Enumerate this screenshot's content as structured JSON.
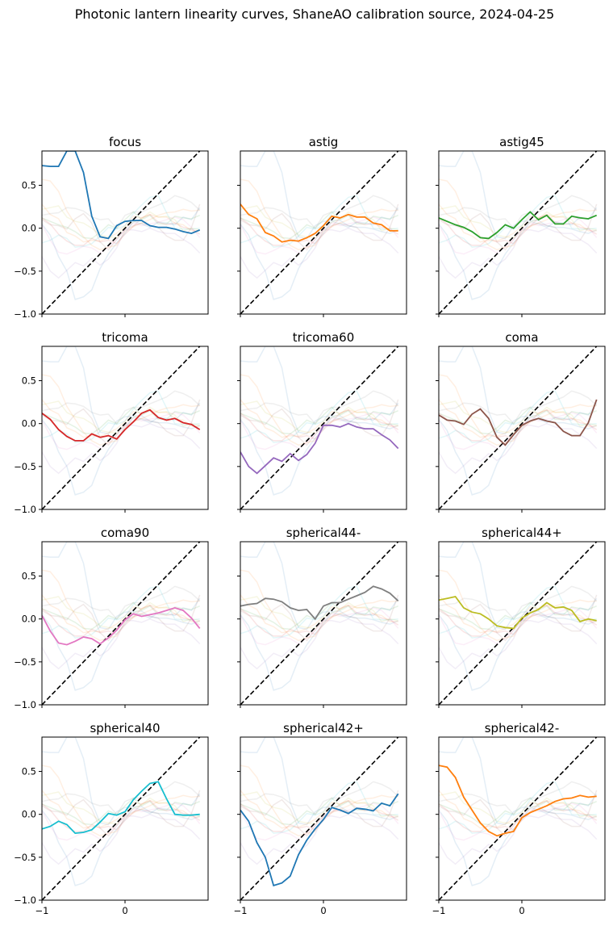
{
  "figure_title": "Photonic lantern linearity curves, ShaneAO calibration source, 2024-04-25",
  "chart_data": {
    "type": "line",
    "layout": "4x3 grid of subplots, shared x and y axes",
    "xlim": [
      -1,
      1
    ],
    "ylim": [
      -1,
      0.9
    ],
    "x_ticks": [
      -1,
      0
    ],
    "y_ticks": [
      -1.0,
      -0.5,
      0.0,
      0.5
    ],
    "x_tick_labels": [
      "−1",
      "0"
    ],
    "y_tick_labels": [
      "−1.0",
      "−0.5",
      "0.0",
      "0.5"
    ],
    "x": [
      -1.0,
      -0.9,
      -0.8,
      -0.7,
      -0.6,
      -0.5,
      -0.4,
      -0.3,
      -0.2,
      -0.1,
      0.0,
      0.1,
      0.2,
      0.3,
      0.4,
      0.5,
      0.6,
      0.7,
      0.8,
      0.9
    ],
    "reference_line": "y = x (black dashed)",
    "background_lines": "faint curves of the other modes' responses, alpha ~0.1",
    "panels": [
      {
        "title": "focus",
        "color": "#1f77b4",
        "values": [
          0.73,
          0.72,
          0.72,
          0.9,
          0.9,
          0.65,
          0.14,
          -0.1,
          -0.12,
          0.03,
          0.08,
          0.09,
          0.09,
          0.03,
          0.01,
          0.01,
          -0.01,
          -0.04,
          -0.06,
          -0.02
        ]
      },
      {
        "title": "astig",
        "color": "#ff7f0e",
        "values": [
          0.28,
          0.16,
          0.11,
          -0.05,
          -0.09,
          -0.16,
          -0.14,
          -0.15,
          -0.11,
          -0.06,
          0.03,
          0.14,
          0.12,
          0.16,
          0.13,
          0.13,
          0.06,
          0.04,
          -0.03,
          -0.03
        ]
      },
      {
        "title": "astig45",
        "color": "#2ca02c",
        "values": [
          0.12,
          0.08,
          0.04,
          0.01,
          -0.04,
          -0.11,
          -0.12,
          -0.05,
          0.04,
          0.0,
          0.1,
          0.19,
          0.1,
          0.15,
          0.05,
          0.05,
          0.14,
          0.12,
          0.11,
          0.15
        ]
      },
      {
        "title": "tricoma",
        "color": "#d62728",
        "values": [
          0.12,
          0.05,
          -0.07,
          -0.15,
          -0.2,
          -0.2,
          -0.12,
          -0.16,
          -0.14,
          -0.18,
          -0.07,
          0.02,
          0.12,
          0.16,
          0.07,
          0.04,
          0.06,
          0.01,
          -0.01,
          -0.07
        ]
      },
      {
        "title": "tricoma60",
        "color": "#9467bd",
        "values": [
          -0.33,
          -0.5,
          -0.58,
          -0.49,
          -0.4,
          -0.44,
          -0.35,
          -0.43,
          -0.36,
          -0.23,
          -0.02,
          -0.02,
          -0.04,
          0.0,
          -0.04,
          -0.06,
          -0.06,
          -0.13,
          -0.19,
          -0.29
        ]
      },
      {
        "title": "coma",
        "color": "#8c564b",
        "values": [
          0.1,
          0.04,
          0.03,
          -0.01,
          0.11,
          0.17,
          0.06,
          -0.16,
          -0.25,
          -0.13,
          -0.02,
          0.03,
          0.06,
          0.03,
          0.01,
          -0.09,
          -0.14,
          -0.14,
          0.01,
          0.28
        ]
      },
      {
        "title": "coma90",
        "color": "#e377c2",
        "values": [
          0.04,
          -0.14,
          -0.28,
          -0.3,
          -0.26,
          -0.21,
          -0.23,
          -0.29,
          -0.22,
          -0.13,
          -0.01,
          0.06,
          0.03,
          0.05,
          0.07,
          0.1,
          0.13,
          0.1,
          0.01,
          -0.11
        ]
      },
      {
        "title": "spherical44-",
        "color": "#7f7f7f",
        "values": [
          0.15,
          0.17,
          0.18,
          0.24,
          0.23,
          0.2,
          0.13,
          0.1,
          0.11,
          0.0,
          0.15,
          0.19,
          0.19,
          0.23,
          0.27,
          0.31,
          0.38,
          0.35,
          0.3,
          0.21
        ]
      },
      {
        "title": "spherical44+",
        "color": "#bcbd22",
        "values": [
          0.22,
          0.24,
          0.26,
          0.13,
          0.08,
          0.06,
          0.0,
          -0.08,
          -0.1,
          -0.11,
          0.01,
          0.07,
          0.11,
          0.19,
          0.13,
          0.14,
          0.1,
          -0.03,
          0.0,
          -0.02
        ]
      },
      {
        "title": "spherical40",
        "color": "#17becf",
        "values": [
          -0.17,
          -0.14,
          -0.08,
          -0.12,
          -0.22,
          -0.21,
          -0.18,
          -0.09,
          0.01,
          -0.01,
          0.03,
          0.17,
          0.27,
          0.36,
          0.38,
          0.18,
          0.0,
          -0.01,
          -0.01,
          0.0
        ]
      },
      {
        "title": "spherical42+",
        "color": "#1f77b4",
        "values": [
          0.05,
          -0.08,
          -0.33,
          -0.5,
          -0.83,
          -0.8,
          -0.72,
          -0.47,
          -0.3,
          -0.17,
          -0.06,
          0.08,
          0.05,
          0.01,
          0.07,
          0.06,
          0.04,
          0.13,
          0.1,
          0.24
        ]
      },
      {
        "title": "spherical42-",
        "color": "#ff7f0e",
        "values": [
          0.57,
          0.55,
          0.43,
          0.2,
          0.05,
          -0.1,
          -0.2,
          -0.25,
          -0.22,
          -0.2,
          -0.04,
          0.02,
          0.06,
          0.1,
          0.15,
          0.18,
          0.19,
          0.22,
          0.2,
          0.21
        ]
      }
    ],
    "grid": false,
    "legend": "none"
  }
}
